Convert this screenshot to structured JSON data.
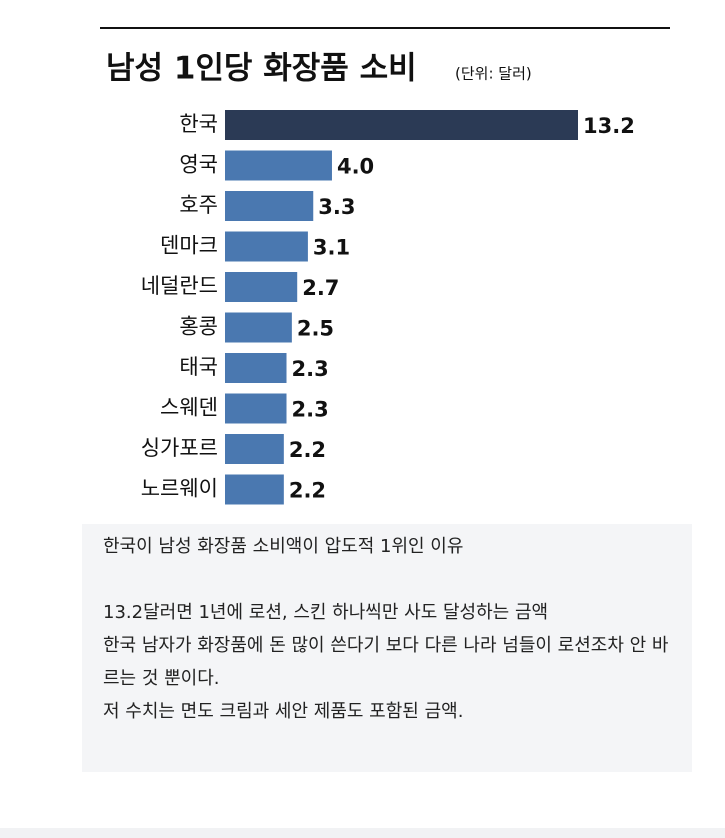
{
  "chart_data": {
    "type": "hbar",
    "title": "남성 1인당 화장품 소비",
    "subtitle": "(단위: 달러)",
    "categories": [
      "한국",
      "영국",
      "호주",
      "덴마크",
      "네덜란드",
      "홍콩",
      "태국",
      "스웨덴",
      "싱가포르",
      "노르웨이"
    ],
    "values": [
      13.2,
      4.0,
      3.3,
      3.1,
      2.7,
      2.5,
      2.3,
      2.3,
      2.2,
      2.2
    ],
    "value_labels": [
      "13.2",
      "4.0",
      "3.3",
      "3.1",
      "2.7",
      "2.5",
      "2.3",
      "2.3",
      "2.2",
      "2.2"
    ],
    "colors": [
      "#2b3a55",
      "#4a78b0",
      "#4a78b0",
      "#4a78b0",
      "#4a78b0",
      "#4a78b0",
      "#4a78b0",
      "#4a78b0",
      "#4a78b0",
      "#4a78b0"
    ]
  },
  "post": {
    "paragraphs": [
      "한국이 남성 화장품 소비액이 압도적 1위인 이유",
      "13.2달러면 1년에 로션, 스킨 하나씩만 사도 달성하는 금액",
      "한국 남자가 화장품에 돈 많이 쓴다기 보다 다른 나라 넘들이 로션조차 안 바르는 것 뿐이다.",
      "저 수치는 면도 크림과 세안 제품도 포함된 금액."
    ]
  }
}
